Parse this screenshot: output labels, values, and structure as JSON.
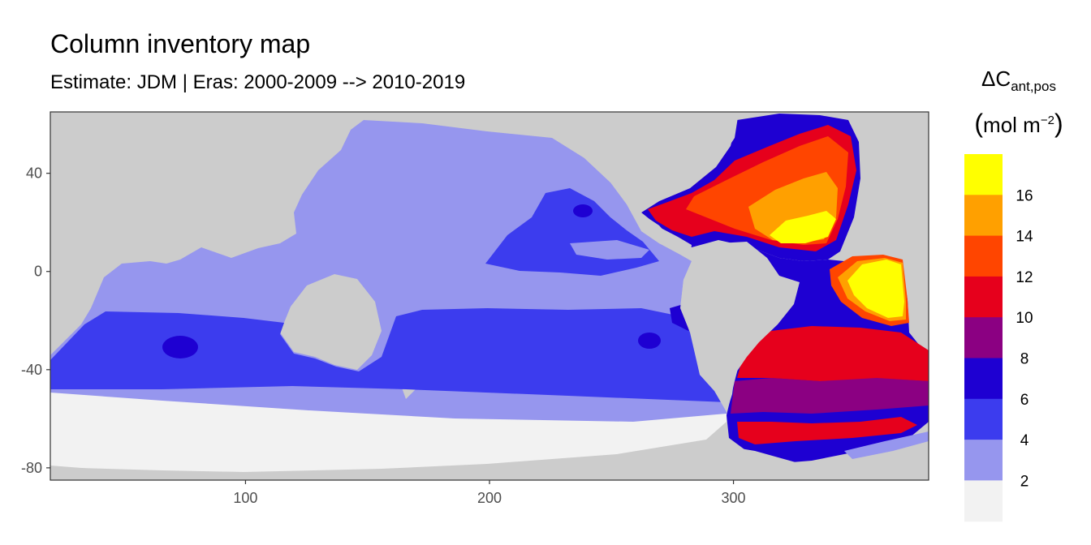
{
  "chart_data": {
    "type": "heatmap",
    "title": "Column inventory map",
    "subtitle": "Estimate: JDM  | Eras: 2000-2009 --> 2010-2019",
    "xlabel": "",
    "ylabel": "",
    "x_ticks": [
      100,
      200,
      300
    ],
    "y_ticks": [
      40,
      0,
      -40,
      -80
    ],
    "xlim": [
      20,
      380
    ],
    "ylim": [
      -85,
      65
    ],
    "legend": {
      "title_main": "ΔC",
      "title_sub": "ant,pos",
      "unit_open": "(",
      "unit_base": "mol m",
      "unit_sup": "−2",
      "unit_close": ")",
      "placement": "right",
      "labels": [
        "2",
        "4",
        "6",
        "8",
        "10",
        "12",
        "14",
        "16"
      ],
      "bins": [
        {
          "range": [
            0,
            2
          ],
          "color": "#F2F2F2"
        },
        {
          "range": [
            2,
            4
          ],
          "color": "#9696EE"
        },
        {
          "range": [
            4,
            6
          ],
          "color": "#3C3CEE"
        },
        {
          "range": [
            6,
            8
          ],
          "color": "#1E00D2"
        },
        {
          "range": [
            8,
            10
          ],
          "color": "#8B0082"
        },
        {
          "range": [
            10,
            12
          ],
          "color": "#E6001C"
        },
        {
          "range": [
            12,
            14
          ],
          "color": "#FF4500"
        },
        {
          "range": [
            14,
            16
          ],
          "color": "#FFA000"
        },
        {
          "range": [
            16,
            18
          ],
          "color": "#FFFF00"
        }
      ]
    },
    "land_color": "#CCCCCC"
  }
}
